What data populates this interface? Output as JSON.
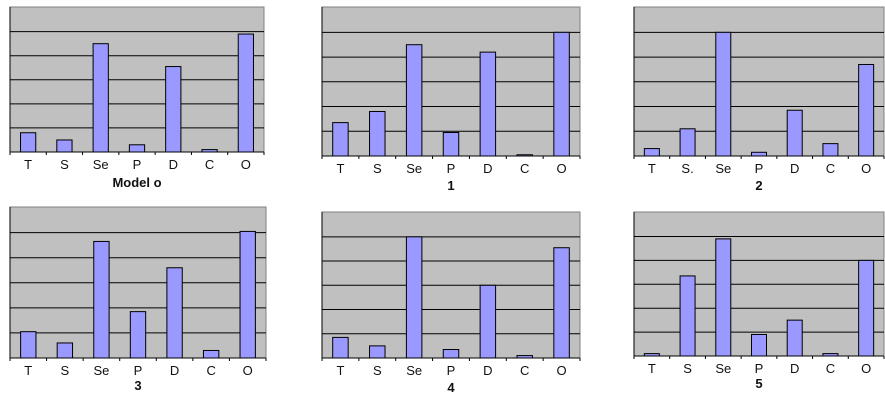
{
  "colors": {
    "plot_bg": "#c0c0c0",
    "bar_fill": "#9999ff",
    "bar_stroke": "#000000",
    "gridline": "#000000"
  },
  "chart_data": [
    {
      "type": "bar",
      "title": "Model o",
      "categories": [
        "T",
        "S",
        "Se",
        "P",
        "D",
        "C",
        "O"
      ],
      "values": [
        16,
        10,
        90,
        6,
        71,
        2,
        98
      ],
      "ylim": [
        0,
        100
      ],
      "grid": true
    },
    {
      "type": "bar",
      "title": "1",
      "categories": [
        "T",
        "S",
        "Se",
        "P",
        "D",
        "C",
        "O"
      ],
      "values": [
        27,
        36,
        90,
        19,
        84,
        1,
        100
      ],
      "ylim": [
        0,
        100
      ],
      "grid": true
    },
    {
      "type": "bar",
      "title": "2",
      "categories": [
        "T",
        "S.",
        "Se",
        "P",
        "D",
        "C",
        "O"
      ],
      "values": [
        6,
        22,
        100,
        3,
        37,
        10,
        74
      ],
      "ylim": [
        0,
        100
      ],
      "grid": true
    },
    {
      "type": "bar",
      "title": "3",
      "categories": [
        "T",
        "S",
        "Se",
        "P",
        "D",
        "C",
        "O"
      ],
      "values": [
        21,
        12,
        93,
        37,
        72,
        6,
        101
      ],
      "ylim": [
        0,
        100
      ],
      "grid": true
    },
    {
      "type": "bar",
      "title": "4",
      "categories": [
        "T",
        "S",
        "Se",
        "P",
        "D",
        "C",
        "O"
      ],
      "values": [
        17,
        10,
        100,
        7,
        60,
        2,
        91
      ],
      "ylim": [
        0,
        100
      ],
      "grid": true
    },
    {
      "type": "bar",
      "title": "5",
      "categories": [
        "T",
        "S",
        "Se",
        "P",
        "D",
        "C",
        "O"
      ],
      "values": [
        2,
        67,
        98,
        18,
        30,
        2,
        80
      ],
      "ylim": [
        0,
        100
      ],
      "grid": true
    }
  ]
}
